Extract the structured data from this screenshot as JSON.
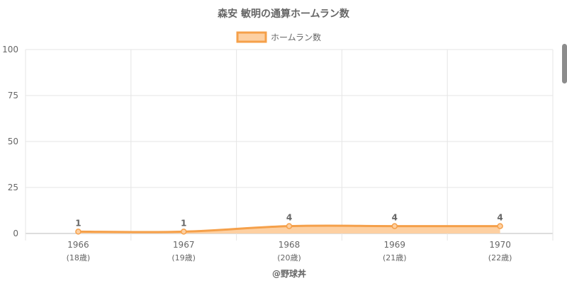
{
  "chart_data": {
    "type": "area",
    "title": "森安 敏明の通算ホームラン数",
    "categories": [
      "1966",
      "1967",
      "1968",
      "1969",
      "1970"
    ],
    "category_sublabels": [
      "(18歳)",
      "(19歳)",
      "(20歳)",
      "(21歳)",
      "(22歳)"
    ],
    "series": [
      {
        "name": "ホームラン数",
        "values": [
          1,
          1,
          4,
          4,
          4
        ]
      }
    ],
    "ylim": [
      0,
      100
    ],
    "yticks": [
      0,
      25,
      50,
      75,
      100
    ],
    "grid": true,
    "legend": "top",
    "line_color": "#f5a04a",
    "fill_color": "#fdd0a2",
    "credit": "@野球丼"
  }
}
